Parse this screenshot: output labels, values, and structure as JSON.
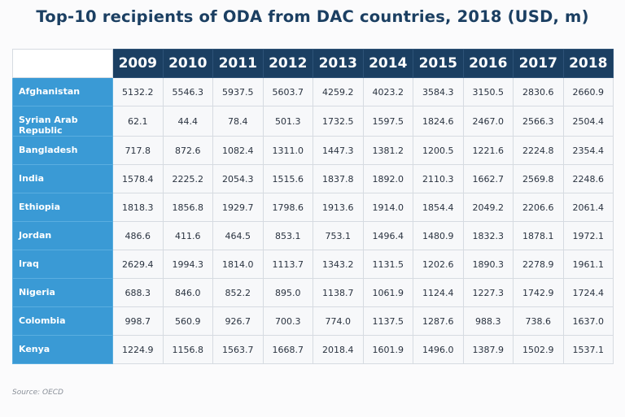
{
  "title": "Top-10 recipients of ODA from DAC countries, 2018 (USD, m)",
  "source": "Source: OECD",
  "colors": {
    "header": "#1b3f62",
    "row_header": "#3a9ad5",
    "cell": "#f7f8fa"
  },
  "chart_data": {
    "type": "table",
    "title": "Top-10 recipients of ODA from DAC countries, 2018 (USD, m)",
    "columns": [
      "2009",
      "2010",
      "2011",
      "2012",
      "2013",
      "2014",
      "2015",
      "2016",
      "2017",
      "2018"
    ],
    "rows": [
      {
        "name": "Afghanistan",
        "values": [
          "5132.2",
          "5546.3",
          "5937.5",
          "5603.7",
          "4259.2",
          "4023.2",
          "3584.3",
          "3150.5",
          "2830.6",
          "2660.9"
        ]
      },
      {
        "name": "Syrian Arab Republic",
        "values": [
          "62.1",
          "44.4",
          "78.4",
          "501.3",
          "1732.5",
          "1597.5",
          "1824.6",
          "2467.0",
          "2566.3",
          "2504.4"
        ]
      },
      {
        "name": "Bangladesh",
        "values": [
          "717.8",
          "872.6",
          "1082.4",
          "1311.0",
          "1447.3",
          "1381.2",
          "1200.5",
          "1221.6",
          "2224.8",
          "2354.4"
        ]
      },
      {
        "name": "India",
        "values": [
          "1578.4",
          "2225.2",
          "2054.3",
          "1515.6",
          "1837.8",
          "1892.0",
          "2110.3",
          "1662.7",
          "2569.8",
          "2248.6"
        ]
      },
      {
        "name": "Ethiopia",
        "values": [
          "1818.3",
          "1856.8",
          "1929.7",
          "1798.6",
          "1913.6",
          "1914.0",
          "1854.4",
          "2049.2",
          "2206.6",
          "2061.4"
        ]
      },
      {
        "name": "Jordan",
        "values": [
          "486.6",
          "411.6",
          "464.5",
          "853.1",
          "753.1",
          "1496.4",
          "1480.9",
          "1832.3",
          "1878.1",
          "1972.1"
        ]
      },
      {
        "name": "Iraq",
        "values": [
          "2629.4",
          "1994.3",
          "1814.0",
          "1113.7",
          "1343.2",
          "1131.5",
          "1202.6",
          "1890.3",
          "2278.9",
          "1961.1"
        ]
      },
      {
        "name": "Nigeria",
        "values": [
          "688.3",
          "846.0",
          "852.2",
          "895.0",
          "1138.7",
          "1061.9",
          "1124.4",
          "1227.3",
          "1742.9",
          "1724.4"
        ]
      },
      {
        "name": "Colombia",
        "values": [
          "998.7",
          "560.9",
          "926.7",
          "700.3",
          "774.0",
          "1137.5",
          "1287.6",
          "988.3",
          "738.6",
          "1637.0"
        ]
      },
      {
        "name": "Kenya",
        "values": [
          "1224.9",
          "1156.8",
          "1563.7",
          "1668.7",
          "2018.4",
          "1601.9",
          "1496.0",
          "1387.9",
          "1502.9",
          "1537.1"
        ]
      }
    ]
  }
}
